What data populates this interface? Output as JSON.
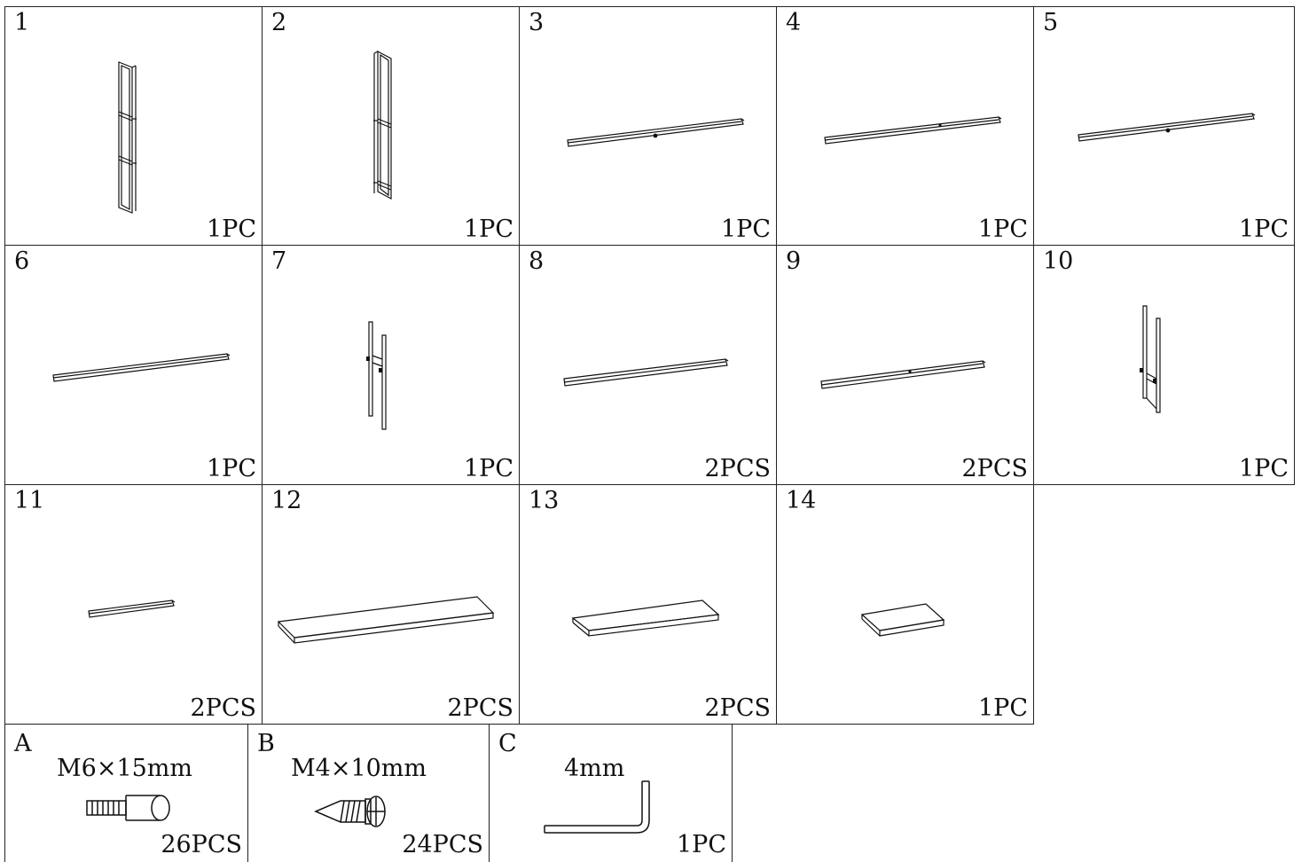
{
  "parts": [
    {
      "number": "1",
      "quantity": "1PC"
    },
    {
      "number": "2",
      "quantity": "1PC"
    },
    {
      "number": "3",
      "quantity": "1PC"
    },
    {
      "number": "4",
      "quantity": "1PC"
    },
    {
      "number": "5",
      "quantity": "1PC"
    },
    {
      "number": "6",
      "quantity": "1PC"
    },
    {
      "number": "7",
      "quantity": "1PC"
    },
    {
      "number": "8",
      "quantity": "2PCS"
    },
    {
      "number": "9",
      "quantity": "2PCS"
    },
    {
      "number": "10",
      "quantity": "1PC"
    },
    {
      "number": "11",
      "quantity": "2PCS"
    },
    {
      "number": "12",
      "quantity": "2PCS"
    },
    {
      "number": "13",
      "quantity": "2PCS"
    },
    {
      "number": "14",
      "quantity": "1PC"
    }
  ],
  "hardware": [
    {
      "letter": "A",
      "spec": "M6×15mm",
      "quantity": "26PCS",
      "icon": "cam-bolt-icon"
    },
    {
      "letter": "B",
      "spec": "M4×10mm",
      "quantity": "24PCS",
      "icon": "screw-icon"
    },
    {
      "letter": "C",
      "spec": "4mm",
      "quantity": "1PC",
      "icon": "allen-key-icon"
    }
  ]
}
